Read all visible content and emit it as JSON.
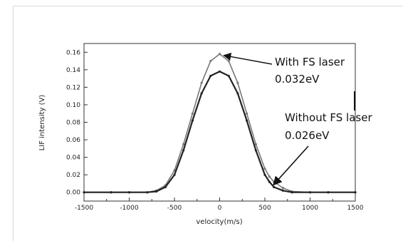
{
  "chart_data": {
    "type": "line",
    "xlabel": "velocity(m/s)",
    "ylabel": "LIF intensity (V)",
    "xlim": [
      -1500,
      1500
    ],
    "ylim": [
      -0.01,
      0.17
    ],
    "xticks": [
      -1500,
      -1000,
      -500,
      0,
      500,
      1000,
      1500
    ],
    "yticks": [
      "0.00",
      "0.02",
      "0.04",
      "0.06",
      "0.08",
      "0.10",
      "0.12",
      "0.14",
      "0.16"
    ],
    "grid": false,
    "series": [
      {
        "color": "#777777",
        "x": [
          -1500,
          -1200,
          -1000,
          -800,
          -700,
          -600,
          -500,
          -400,
          -300,
          -200,
          -100,
          0,
          100,
          200,
          300,
          400,
          500,
          550,
          600,
          700,
          800,
          1000,
          1200,
          1500
        ],
        "y": [
          0.0,
          0.0,
          0.0,
          0.0,
          0.002,
          0.008,
          0.025,
          0.055,
          0.09,
          0.125,
          0.15,
          0.158,
          0.15,
          0.125,
          0.09,
          0.055,
          0.027,
          0.018,
          0.012,
          0.005,
          0.001,
          0.0,
          0.0,
          0.0
        ]
      },
      {
        "color": "#222222",
        "x": [
          -1500,
          -1200,
          -1000,
          -800,
          -700,
          -600,
          -500,
          -400,
          -300,
          -200,
          -100,
          0,
          100,
          200,
          300,
          400,
          500,
          550,
          600,
          700,
          800,
          1000,
          1200,
          1500
        ],
        "y": [
          0.0,
          0.0,
          0.0,
          0.0,
          0.001,
          0.006,
          0.02,
          0.048,
          0.082,
          0.113,
          0.133,
          0.138,
          0.133,
          0.113,
          0.082,
          0.048,
          0.02,
          0.012,
          0.006,
          0.002,
          0.0,
          0.0,
          0.0,
          0.0
        ]
      }
    ],
    "annotations": [
      {
        "lines": [
          "With FS laser",
          "0.032eV"
        ],
        "points_to": [
          0,
          0.158
        ]
      },
      {
        "lines": [
          "Without FS laser",
          "0.026eV"
        ],
        "points_to": [
          580,
          0.007
        ]
      }
    ]
  }
}
